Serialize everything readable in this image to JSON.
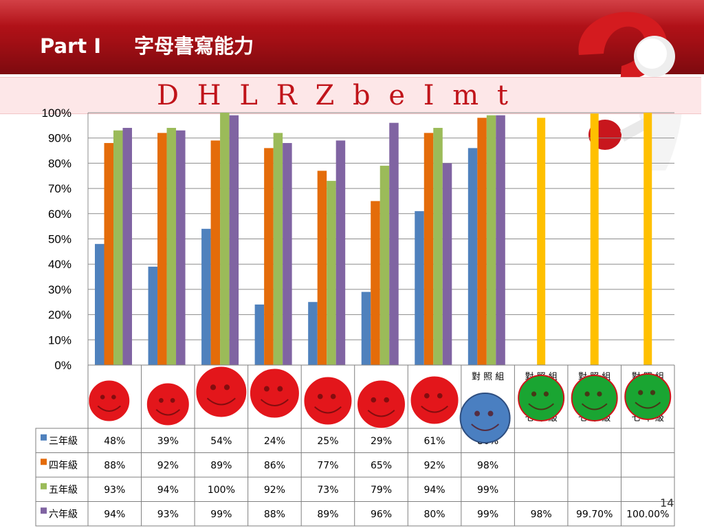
{
  "slide": {
    "title_part": "Part I",
    "title_text": "字母書寫能力",
    "letters": "D H L R Z b e I m t",
    "page_number": "14"
  },
  "faces": {
    "column_labels": [
      "",
      "",
      "",
      "",
      "",
      "",
      "",
      "對 照 組",
      "對 照 組",
      "對 照 組",
      "對 照 組"
    ],
    "column_sublabels": [
      "",
      "",
      "",
      "",
      "",
      "",
      "",
      "",
      "七 年 級",
      "七 年 級",
      "七 年 級"
    ],
    "colors": [
      "#e3161b",
      "#e3161b",
      "#e3161b",
      "#e3161b",
      "#e3161b",
      "#e3161b",
      "#e3161b",
      "#4a7fc1",
      "#1aa532",
      "#1aa532",
      "#1aa532"
    ],
    "mood": [
      "happy",
      "happy",
      "happy",
      "happy",
      "happy",
      "happy",
      "happy",
      "happy",
      "happy",
      "happy",
      "happy"
    ]
  },
  "chart_data": {
    "type": "bar",
    "ylim": [
      0,
      100
    ],
    "yticks": [
      "0%",
      "10%",
      "20%",
      "30%",
      "40%",
      "50%",
      "60%",
      "70%",
      "80%",
      "90%",
      "100%"
    ],
    "series": [
      {
        "name": "三年級",
        "color": "#4f81bd",
        "values": [
          48,
          39,
          54,
          24,
          25,
          29,
          61,
          86,
          null,
          null,
          null
        ],
        "labels": [
          "48%",
          "39%",
          "54%",
          "24%",
          "25%",
          "29%",
          "61%",
          "86%",
          "",
          "",
          ""
        ]
      },
      {
        "name": "四年級",
        "color": "#e46c0a",
        "values": [
          88,
          92,
          89,
          86,
          77,
          65,
          92,
          98,
          null,
          null,
          null
        ],
        "labels": [
          "88%",
          "92%",
          "89%",
          "86%",
          "77%",
          "65%",
          "92%",
          "98%",
          "",
          "",
          ""
        ]
      },
      {
        "name": "五年級",
        "color": "#9bbb59",
        "values": [
          93,
          94,
          100,
          92,
          73,
          79,
          94,
          99,
          null,
          null,
          null
        ],
        "labels": [
          "93%",
          "94%",
          "100%",
          "92%",
          "73%",
          "79%",
          "94%",
          "99%",
          "",
          "",
          ""
        ]
      },
      {
        "name": "六年級",
        "color": "#8064a2",
        "values": [
          94,
          93,
          99,
          88,
          89,
          96,
          80,
          99,
          98,
          99.7,
          100
        ],
        "labels": [
          "94%",
          "93%",
          "99%",
          "88%",
          "89%",
          "96%",
          "80%",
          "99%",
          "98%",
          "99.70%",
          "100.00%"
        ]
      }
    ],
    "highlight_color": "#ffc000",
    "grid": true,
    "legend": "table"
  }
}
